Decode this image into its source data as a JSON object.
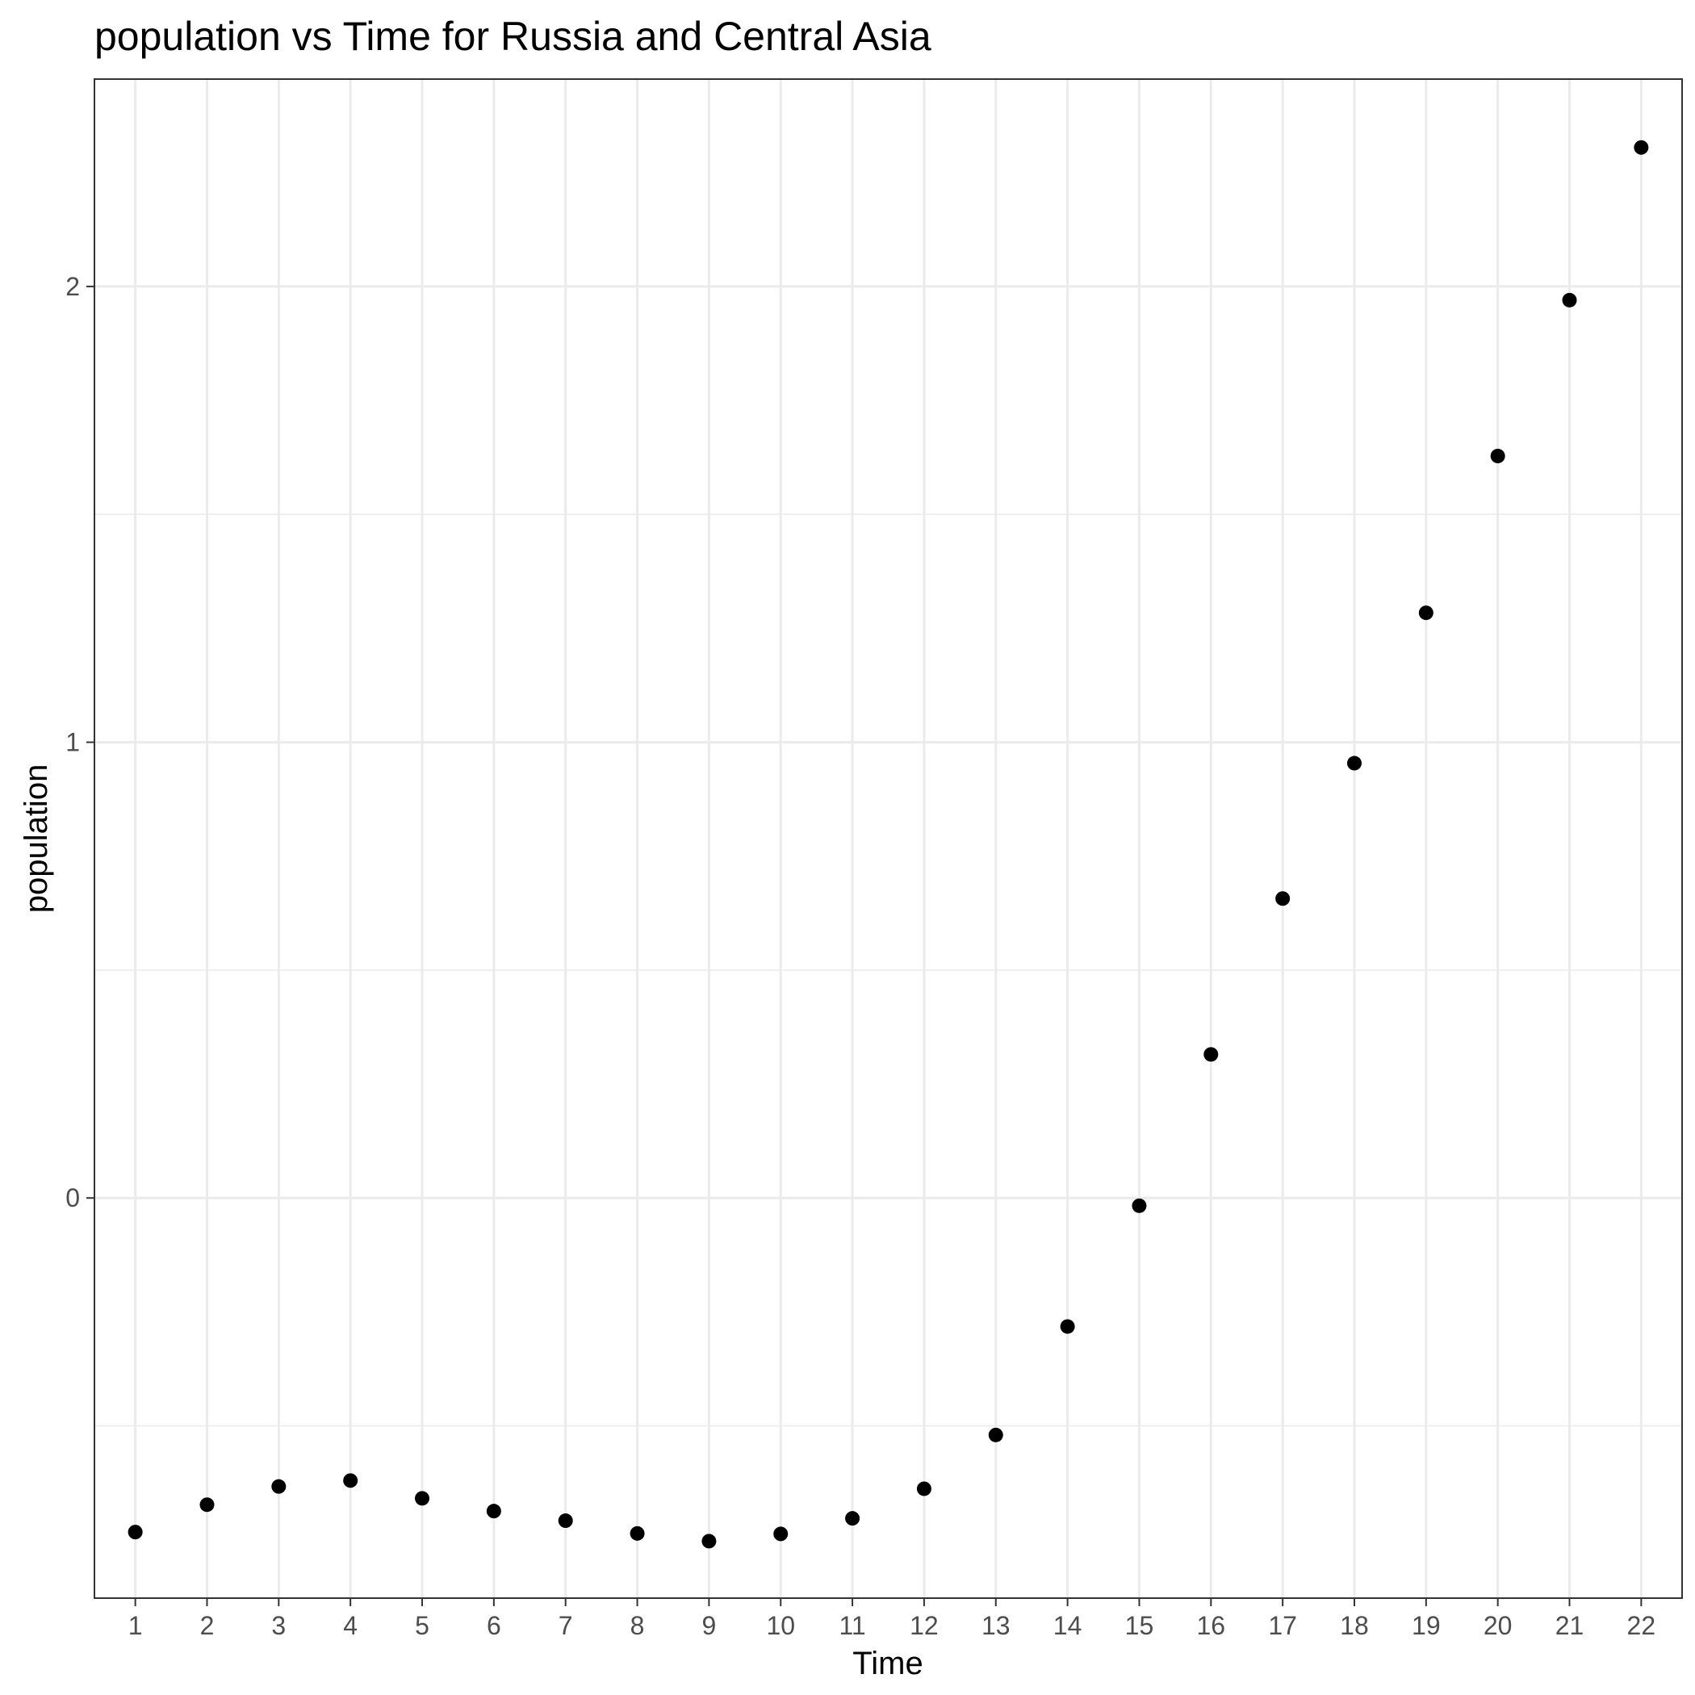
{
  "chart_data": {
    "type": "scatter",
    "title": "population  vs Time for Russia and Central Asia",
    "xlabel": "Time",
    "ylabel": "population",
    "x": [
      1,
      2,
      3,
      4,
      5,
      6,
      7,
      8,
      9,
      10,
      11,
      12,
      13,
      14,
      15,
      16,
      17,
      18,
      19,
      20,
      21,
      22
    ],
    "y": [
      -0.733,
      -0.673,
      -0.633,
      -0.62,
      -0.659,
      -0.687,
      -0.708,
      -0.736,
      -0.753,
      -0.737,
      -0.703,
      -0.638,
      -0.52,
      -0.282,
      -0.017,
      0.315,
      0.657,
      0.954,
      1.284,
      1.628,
      1.97,
      2.305
    ],
    "xlim": [
      0.43,
      22.57
    ],
    "ylim": [
      -0.878,
      2.455
    ],
    "x_ticks": [
      "1",
      "2",
      "3",
      "4",
      "5",
      "6",
      "7",
      "8",
      "9",
      "10",
      "11",
      "12",
      "13",
      "14",
      "15",
      "16",
      "17",
      "18",
      "19",
      "20",
      "21",
      "22"
    ],
    "y_ticks": [
      {
        "value": 0,
        "label": "0"
      },
      {
        "value": 1,
        "label": "1"
      },
      {
        "value": 2,
        "label": "2"
      }
    ],
    "y_minor_ticks": [
      -0.5,
      0.5,
      1.5
    ],
    "grid": true,
    "colors": {
      "points": "#000000",
      "grid": "#ebebeb",
      "panel_border": "#333333",
      "background": "#ffffff"
    }
  }
}
